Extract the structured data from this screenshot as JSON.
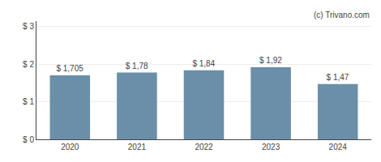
{
  "chart_data": {
    "type": "bar",
    "categories": [
      "2020",
      "2021",
      "2022",
      "2023",
      "2024"
    ],
    "values": [
      1.705,
      1.78,
      1.84,
      1.92,
      1.47
    ],
    "value_labels": [
      "$ 1,705",
      "$ 1,78",
      "$ 1,84",
      "$ 1,92",
      "$ 1,47"
    ],
    "data_labels": true,
    "color": "#6b8fa8",
    "ylim": [
      0,
      3.15
    ],
    "yticks": [
      {
        "value": 0,
        "label": "$ 0"
      },
      {
        "value": 1,
        "label": "$ 1"
      },
      {
        "value": 2,
        "label": "$ 2"
      },
      {
        "value": 3,
        "label": "$ 3"
      }
    ],
    "grid": true,
    "annotations": [
      {
        "text": "(c) Trivano.com"
      }
    ]
  }
}
